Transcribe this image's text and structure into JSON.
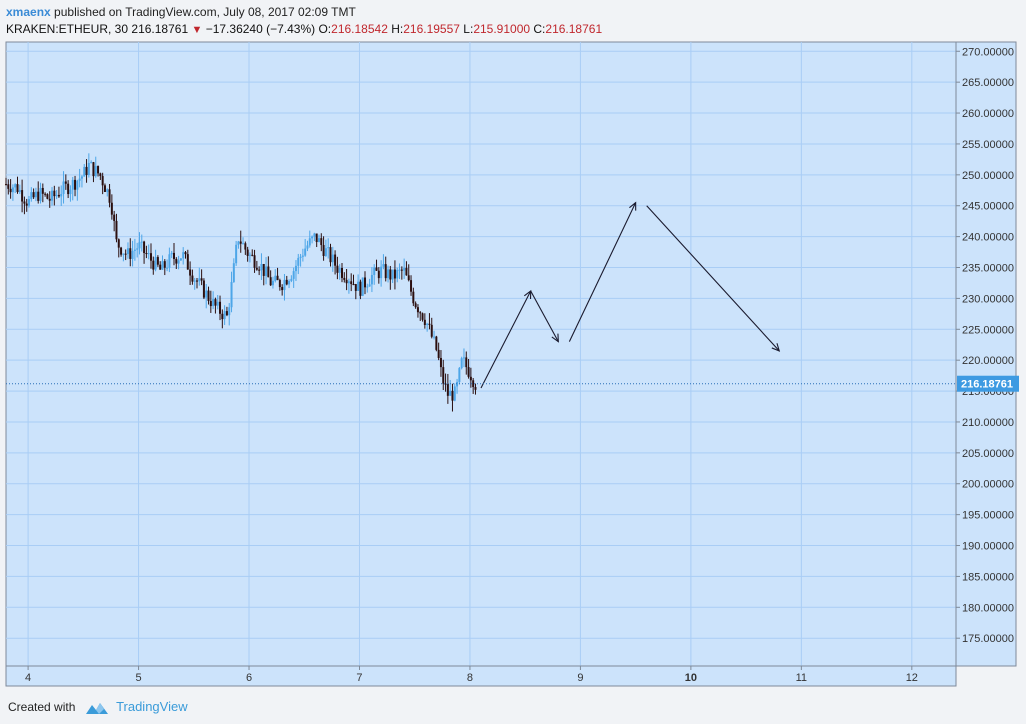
{
  "header": {
    "author": "xmaenx",
    "published_text": "published on TradingView.com, July 08, 2017 02:09 TMT",
    "symbol": "KRAKEN:ETHEUR, 30",
    "last": "216.18761",
    "change": "−17.36240 (−7.43%)",
    "open_label": "O:",
    "open": "216.18542",
    "high_label": "H:",
    "high": "216.19557",
    "low_label": "L:",
    "low": "215.91000",
    "close_label": "C:",
    "close": "216.18761"
  },
  "footer": {
    "created_with": "Created with",
    "brand": "TradingView"
  },
  "colors": {
    "plot_bg": "#cce3fb",
    "grid": "#a9cdf5",
    "page_bg": "#f1f3f6",
    "up_candle": "#4da6e8",
    "down_candle": "#2b0f0f",
    "price_label_bg": "#3d9ae2",
    "price_line": "#2a6fb8",
    "drawing": "#1a1a2e"
  },
  "chart_data": {
    "type": "candlestick",
    "symbol": "KRAKEN:ETHEUR",
    "interval": "30",
    "x_axis": {
      "ticks": [
        "4",
        "5",
        "6",
        "7",
        "8",
        "9",
        "10",
        "11",
        "12"
      ],
      "bold_ticks": [
        "10"
      ],
      "range": [
        3.8,
        12.4
      ]
    },
    "y_axis": {
      "range": [
        170.5,
        271.5
      ],
      "ticks": [
        175,
        180,
        185,
        190,
        195,
        200,
        205,
        210,
        215,
        220,
        225,
        230,
        235,
        240,
        245,
        250,
        255,
        260,
        265,
        270
      ],
      "tick_format": "0.00000",
      "position": "right"
    },
    "current_price": 216.18761,
    "current_price_label": "216.18761",
    "price_path": [
      [
        3.8,
        248.5
      ],
      [
        3.9,
        248
      ],
      [
        4.0,
        245.5
      ],
      [
        4.1,
        247
      ],
      [
        4.2,
        246
      ],
      [
        4.3,
        247.5
      ],
      [
        4.4,
        248.5
      ],
      [
        4.5,
        250
      ],
      [
        4.55,
        251.5
      ],
      [
        4.65,
        250
      ],
      [
        4.75,
        246
      ],
      [
        4.8,
        239
      ],
      [
        4.9,
        237
      ],
      [
        5.0,
        238.5
      ],
      [
        5.1,
        236.5
      ],
      [
        5.2,
        234.5
      ],
      [
        5.3,
        236.5
      ],
      [
        5.4,
        237
      ],
      [
        5.5,
        233.5
      ],
      [
        5.6,
        231
      ],
      [
        5.7,
        228.5
      ],
      [
        5.8,
        227
      ],
      [
        5.85,
        233
      ],
      [
        5.9,
        240
      ],
      [
        6.0,
        237
      ],
      [
        6.1,
        235.5
      ],
      [
        6.2,
        232.5
      ],
      [
        6.3,
        232.5
      ],
      [
        6.4,
        234.5
      ],
      [
        6.5,
        238
      ],
      [
        6.6,
        240
      ],
      [
        6.7,
        237.5
      ],
      [
        6.8,
        235
      ],
      [
        6.9,
        233.5
      ],
      [
        7.0,
        231.5
      ],
      [
        7.1,
        233.5
      ],
      [
        7.2,
        234.5
      ],
      [
        7.3,
        233.5
      ],
      [
        7.4,
        234.5
      ],
      [
        7.5,
        229.5
      ],
      [
        7.6,
        226.5
      ],
      [
        7.7,
        221.5
      ],
      [
        7.75,
        217
      ],
      [
        7.8,
        214.5
      ],
      [
        7.87,
        214.5
      ],
      [
        7.93,
        220
      ],
      [
        8.0,
        218
      ],
      [
        8.05,
        216.19
      ]
    ],
    "annotations": {
      "forecast_path": [
        [
          8.1,
          215.5
        ],
        [
          8.55,
          231.2
        ],
        [
          8.8,
          223.0
        ],
        [
          8.9,
          223.0
        ],
        [
          9.5,
          245.5
        ],
        [
          9.6,
          245.0
        ],
        [
          10.8,
          221.5
        ]
      ]
    }
  }
}
